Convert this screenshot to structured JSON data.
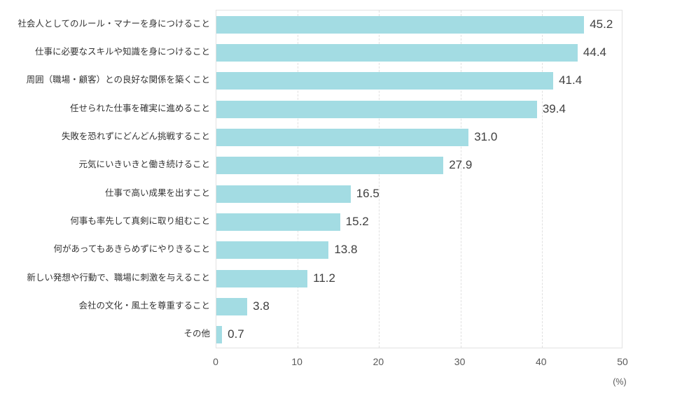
{
  "chart_data": {
    "type": "bar",
    "orientation": "horizontal",
    "title": "",
    "xlabel": "(%)",
    "ylabel": "",
    "xlim": [
      0,
      50
    ],
    "xticks": [
      "0",
      "10",
      "20",
      "30",
      "40",
      "50"
    ],
    "grid": "vertical-dashed",
    "legend": "none",
    "categories": [
      "社会人としてのルール・マナーを身につけること",
      "仕事に必要なスキルや知識を身につけること",
      "周囲（職場・顧客）との良好な関係を築くこと",
      "任せられた仕事を確実に進めること",
      "失敗を恐れずにどんどん挑戦すること",
      "元気にいきいきと働き続けること",
      "仕事で高い成果を出すこと",
      "何事も率先して真剣に取り組むこと",
      "何があってもあきらめずにやりきること",
      "新しい発想や行動で、職場に刺激を与えること",
      "会社の文化・風土を尊重すること",
      "その他"
    ],
    "values": [
      45.2,
      44.4,
      41.4,
      39.4,
      31.0,
      27.9,
      16.5,
      15.2,
      13.8,
      11.2,
      3.8,
      0.7
    ],
    "value_labels": [
      "45.2",
      "44.4",
      "41.4",
      "39.4",
      "31.0",
      "27.9",
      "16.5",
      "15.2",
      "13.8",
      "11.2",
      "3.8",
      "0.7"
    ]
  },
  "colors": {
    "bar": "#a3dce3",
    "grid": "#e0e0e0",
    "plot_border": "#e2e2e2",
    "category_label": "#333333",
    "value_label": "#404040",
    "tick_label": "#595959",
    "background": "#ffffff"
  }
}
